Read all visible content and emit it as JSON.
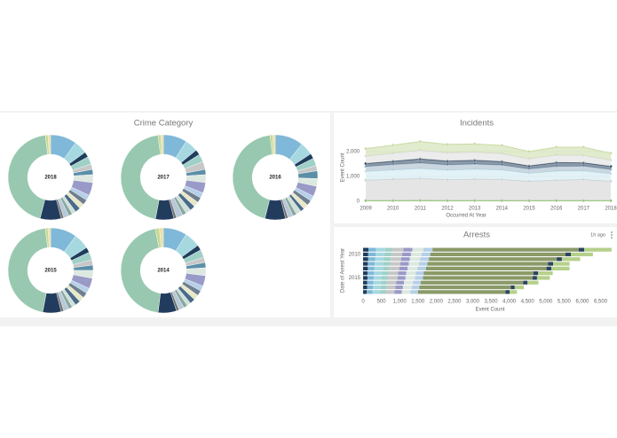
{
  "dashboard": {
    "group_title": "Crime Category",
    "arrests_updated": "1h ago"
  },
  "chart_data": [
    {
      "type": "pie",
      "label": "2018",
      "colors": [
        "#7fb8d8",
        "#a6d8e0",
        "#1f3d5c",
        "#9fd0c8",
        "#c7c7c7",
        "#5b8fa8",
        "#dce8e0",
        "#9a9ac8",
        "#b5cfe8",
        "#6f7f8f",
        "#e8e8c8",
        "#4a6a8a",
        "#cfe0d8",
        "#88a8a0",
        "#b8c8d8",
        "#707070",
        "#223c5e",
        "#98c8b0",
        "#c8d890",
        "#e8e0a8"
      ],
      "values": [
        10,
        5,
        2,
        3,
        2,
        2,
        3,
        5,
        2,
        2,
        2,
        2,
        1.5,
        1.5,
        2,
        1,
        8,
        44,
        1,
        1
      ]
    },
    {
      "type": "pie",
      "label": "2017",
      "colors": [
        "#7fb8d8",
        "#a6d8e0",
        "#1f3d5c",
        "#9fd0c8",
        "#c7c7c7",
        "#5b8fa8",
        "#dce8e0",
        "#9a9ac8",
        "#b5cfe8",
        "#6f7f8f",
        "#e8e8c8",
        "#4a6a8a",
        "#cfe0d8",
        "#88a8a0",
        "#b8c8d8",
        "#707070",
        "#223c5e",
        "#98c8b0",
        "#c8d890",
        "#e8e0a8"
      ],
      "values": [
        9,
        5,
        2,
        3,
        3,
        2,
        3,
        4,
        2,
        2,
        2,
        2,
        2,
        1.5,
        2.5,
        1,
        7,
        45,
        1,
        1
      ]
    },
    {
      "type": "pie",
      "label": "2016",
      "colors": [
        "#7fb8d8",
        "#a6d8e0",
        "#1f3d5c",
        "#9fd0c8",
        "#c7c7c7",
        "#5b8fa8",
        "#dce8e0",
        "#9a9ac8",
        "#b5cfe8",
        "#6f7f8f",
        "#e8e8c8",
        "#4a6a8a",
        "#cfe0d8",
        "#88a8a0",
        "#b8c8d8",
        "#707070",
        "#223c5e",
        "#98c8b0",
        "#c8d890",
        "#e8e0a8"
      ],
      "values": [
        11,
        5,
        2,
        3,
        2,
        3,
        3,
        4,
        2,
        2,
        2,
        1.5,
        2,
        1.5,
        2,
        1,
        8,
        45,
        1,
        1
      ]
    },
    {
      "type": "pie",
      "label": "2015",
      "colors": [
        "#7fb8d8",
        "#a6d8e0",
        "#1f3d5c",
        "#9fd0c8",
        "#c7c7c7",
        "#5b8fa8",
        "#dce8e0",
        "#9a9ac8",
        "#b5cfe8",
        "#6f7f8f",
        "#e8e8c8",
        "#4a6a8a",
        "#cfe0d8",
        "#88a8a0",
        "#b8c8d8",
        "#707070",
        "#223c5e",
        "#98c8b0",
        "#c8d890",
        "#e8e0a8"
      ],
      "values": [
        10,
        6,
        2,
        3,
        2,
        2,
        3,
        4,
        2,
        2,
        2,
        2,
        1.5,
        1.5,
        2,
        1,
        7,
        45,
        1,
        1
      ]
    },
    {
      "type": "pie",
      "label": "2014",
      "colors": [
        "#7fb8d8",
        "#a6d8e0",
        "#1f3d5c",
        "#9fd0c8",
        "#c7c7c7",
        "#5b8fa8",
        "#dce8e0",
        "#9a9ac8",
        "#b5cfe8",
        "#6f7f8f",
        "#e8e8c8",
        "#4a6a8a",
        "#cfe0d8",
        "#88a8a0",
        "#b8c8d8",
        "#707070",
        "#223c5e",
        "#98c8b0",
        "#c8d890",
        "#e8e0a8"
      ],
      "values": [
        9,
        6,
        2,
        3,
        2,
        2,
        3,
        4,
        2,
        2,
        2,
        2,
        1.5,
        1.5,
        2,
        1,
        7,
        45,
        1.5,
        1.5
      ]
    },
    {
      "type": "area",
      "title": "Incidents",
      "xlabel": "Occurred At Year",
      "ylabel": "Event Count",
      "x": [
        2009,
        2010,
        2011,
        2012,
        2013,
        2014,
        2015,
        2016,
        2017,
        2018
      ],
      "xlim": [
        2009,
        2018
      ],
      "xticks": [
        2009,
        2010,
        2011,
        2012,
        2013,
        2014,
        2015,
        2016,
        2017,
        2018
      ],
      "ylim": [
        0,
        2750
      ],
      "yticks": [
        0,
        {
          "value": 1000,
          "label": "1,000"
        },
        {
          "value": 2000,
          "label": "2,000"
        }
      ],
      "grid": true,
      "series": [
        {
          "color": "#8cc06a",
          "values": [
            30,
            30,
            35,
            30,
            30,
            30,
            25,
            30,
            30,
            25
          ]
        },
        {
          "color": "#cfcfcf",
          "values": [
            820,
            860,
            880,
            840,
            860,
            850,
            780,
            820,
            850,
            780
          ]
        },
        {
          "color": "#cbe8ee",
          "values": [
            350,
            370,
            400,
            380,
            400,
            380,
            320,
            360,
            340,
            300
          ]
        },
        {
          "color": "#9fb4c6",
          "values": [
            200,
            220,
            230,
            220,
            210,
            200,
            180,
            200,
            200,
            180
          ]
        },
        {
          "color": "#2b4560",
          "values": [
            120,
            130,
            160,
            150,
            150,
            140,
            120,
            150,
            130,
            120
          ]
        },
        {
          "color": "#dcdcdc",
          "values": [
            300,
            320,
            350,
            330,
            330,
            320,
            280,
            300,
            300,
            250
          ]
        },
        {
          "color": "#c9dba4",
          "values": [
            300,
            330,
            350,
            340,
            330,
            330,
            300,
            320,
            330,
            280
          ]
        }
      ]
    },
    {
      "type": "hbar",
      "title": "Arrests",
      "xlabel": "Event Count",
      "ylabel": "Date of Arrest Year",
      "categories": [
        null,
        "2010",
        null,
        null,
        null,
        null,
        "2015",
        null,
        null,
        null
      ],
      "xlim": [
        0,
        6900
      ],
      "xticks": [
        0,
        500,
        {
          "value": 1000,
          "label": "1,000"
        },
        {
          "value": 1500,
          "label": "1,500"
        },
        {
          "value": 2000,
          "label": "2,000"
        },
        {
          "value": 2500,
          "label": "2,500"
        },
        {
          "value": 3000,
          "label": "3,000"
        },
        {
          "value": 3500,
          "label": "3,500"
        },
        {
          "value": 4000,
          "label": "4,000"
        },
        {
          "value": 4500,
          "label": "4,500"
        },
        {
          "value": 5000,
          "label": "5,000"
        },
        {
          "value": 5500,
          "label": "5,500"
        },
        {
          "value": 6000,
          "label": "6,000"
        },
        {
          "value": 6500,
          "label": "6,500"
        }
      ],
      "series": [
        {
          "color": "#1f3d5c",
          "values": [
            150,
            140,
            140,
            130,
            130,
            120,
            120,
            110,
            110,
            100
          ]
        },
        {
          "color": "#7fb8d8",
          "values": [
            200,
            200,
            190,
            190,
            180,
            180,
            170,
            170,
            160,
            160
          ]
        },
        {
          "color": "#a6d8e0",
          "values": [
            250,
            240,
            240,
            230,
            230,
            220,
            220,
            210,
            210,
            200
          ]
        },
        {
          "color": "#9fd0c8",
          "values": [
            200,
            200,
            190,
            190,
            180,
            180,
            170,
            170,
            160,
            160
          ]
        },
        {
          "color": "#c7c7c7",
          "values": [
            300,
            290,
            280,
            280,
            270,
            260,
            260,
            250,
            240,
            240
          ]
        },
        {
          "color": "#9a9ac8",
          "values": [
            250,
            240,
            240,
            230,
            230,
            220,
            220,
            210,
            210,
            200
          ]
        },
        {
          "color": "#dce8e0",
          "values": [
            300,
            290,
            280,
            280,
            270,
            260,
            260,
            250,
            240,
            240
          ]
        },
        {
          "color": "#b5cfe8",
          "values": [
            250,
            240,
            240,
            230,
            230,
            220,
            220,
            210,
            210,
            200
          ]
        },
        {
          "color": "#8a9a68",
          "values": [
            4000,
            3700,
            3500,
            3300,
            3300,
            3000,
            3000,
            2800,
            2500,
            2400
          ]
        },
        {
          "color": "#2b4560",
          "values": [
            150,
            150,
            140,
            140,
            130,
            130,
            120,
            120,
            110,
            110
          ]
        },
        {
          "color": "#b5d08a",
          "values": [
            750,
            600,
            500,
            450,
            500,
            400,
            350,
            300,
            250,
            200
          ]
        }
      ]
    }
  ]
}
